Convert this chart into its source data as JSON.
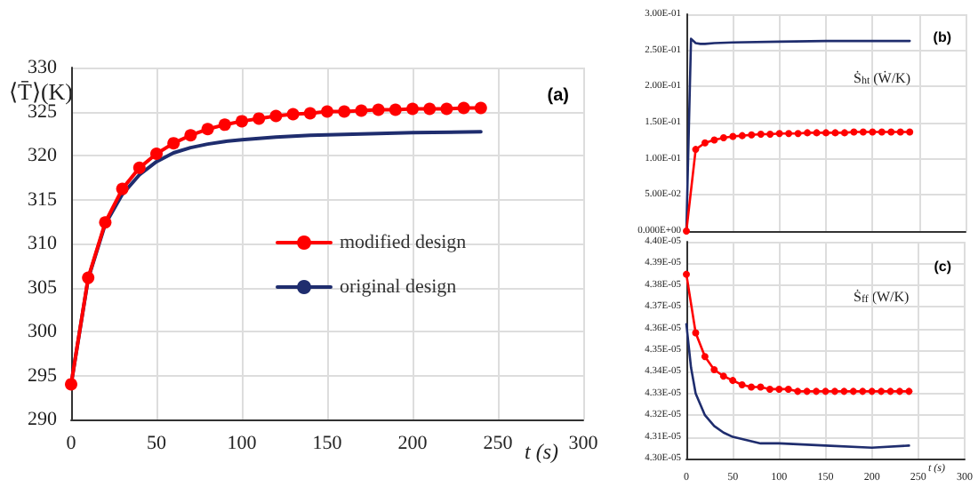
{
  "chart_data": [
    {
      "type": "line",
      "title": "(a)",
      "xlabel": "t (s)",
      "ylabel": "⟨T̄⟩(K)",
      "xlim": [
        0,
        300
      ],
      "xticks": [
        0,
        50,
        100,
        150,
        200,
        250,
        300
      ],
      "ylim": [
        290,
        330
      ],
      "yticks": [
        290,
        295,
        300,
        305,
        310,
        315,
        320,
        325,
        330
      ],
      "grid": true,
      "legend": "right",
      "series": [
        {
          "name": "modified design",
          "color": "#ff0000",
          "marker": "circle",
          "x": [
            0,
            10,
            20,
            30,
            40,
            50,
            60,
            70,
            80,
            90,
            100,
            110,
            120,
            130,
            140,
            150,
            160,
            170,
            180,
            190,
            200,
            210,
            220,
            230,
            240
          ],
          "values": [
            294,
            306.1,
            312.4,
            316.2,
            318.6,
            320.2,
            321.4,
            322.3,
            323.0,
            323.5,
            323.9,
            324.2,
            324.5,
            324.7,
            324.8,
            325.0,
            325.0,
            325.1,
            325.2,
            325.2,
            325.3,
            325.3,
            325.3,
            325.4,
            325.4
          ]
        },
        {
          "name": "original design",
          "color": "#1f2d6e",
          "marker": "none",
          "x": [
            0,
            10,
            20,
            30,
            40,
            50,
            60,
            70,
            80,
            90,
            100,
            120,
            140,
            160,
            200,
            240
          ],
          "values": [
            294,
            306.0,
            312.2,
            315.6,
            317.8,
            319.3,
            320.3,
            320.9,
            321.3,
            321.6,
            321.8,
            322.1,
            322.3,
            322.4,
            322.6,
            322.7
          ]
        }
      ]
    },
    {
      "type": "line",
      "title": "(b)",
      "ylabel": "Ṡ$_{ht}$ (Ẇ/K)",
      "xlim": [
        0,
        300
      ],
      "xticks": [
        0,
        50,
        100,
        150,
        200,
        250,
        300
      ],
      "ylim": [
        0,
        0.3
      ],
      "yticks": [
        {
          "value": 0,
          "label": "0.000E+00"
        },
        {
          "value": 0.05,
          "label": "5.00E-02"
        },
        {
          "value": 0.1,
          "label": "1.00E-01"
        },
        {
          "value": 0.15,
          "label": "1.50E-01"
        },
        {
          "value": 0.2,
          "label": "2.00E-01"
        },
        {
          "value": 0.25,
          "label": "2.50E-01"
        },
        {
          "value": 0.3,
          "label": "3.00E-01"
        }
      ],
      "grid": true,
      "tick_labels": "y",
      "series": [
        {
          "color": "#ff0000",
          "marker": "circle",
          "x": [
            0,
            10,
            20,
            30,
            40,
            50,
            60,
            70,
            80,
            90,
            100,
            110,
            120,
            130,
            140,
            150,
            160,
            170,
            180,
            190,
            200,
            210,
            220,
            230,
            240
          ],
          "values": [
            0,
            0.113,
            0.122,
            0.126,
            0.129,
            0.131,
            0.132,
            0.133,
            0.134,
            0.134,
            0.135,
            0.135,
            0.135,
            0.136,
            0.136,
            0.136,
            0.136,
            0.136,
            0.137,
            0.137,
            0.137,
            0.137,
            0.137,
            0.137,
            0.137
          ]
        },
        {
          "color": "#1f2d6e",
          "marker": "none",
          "x": [
            0,
            5,
            10,
            15,
            20,
            30,
            50,
            100,
            150,
            200,
            240
          ],
          "values": [
            0,
            0.266,
            0.26,
            0.259,
            0.259,
            0.26,
            0.261,
            0.262,
            0.263,
            0.263,
            0.263
          ]
        }
      ]
    },
    {
      "type": "line",
      "title": "(c)",
      "xlabel": "t (s)",
      "ylabel": "Ṡ$_{ff}$ (W/K)",
      "xlim": [
        0,
        300
      ],
      "xticks": [
        0,
        50,
        100,
        150,
        200,
        250,
        300
      ],
      "ylim": [
        4.3e-05,
        4.4e-05
      ],
      "yticks": [
        {
          "value": 4.3e-05,
          "label": "4.30E-05"
        },
        {
          "value": 4.31e-05,
          "label": "4.31E-05"
        },
        {
          "value": 4.32e-05,
          "label": "4.32E-05"
        },
        {
          "value": 4.33e-05,
          "label": "4.33E-05"
        },
        {
          "value": 4.34e-05,
          "label": "4.34E-05"
        },
        {
          "value": 4.35e-05,
          "label": "4.35E-05"
        },
        {
          "value": 4.36e-05,
          "label": "4.36E-05"
        },
        {
          "value": 4.37e-05,
          "label": "4.37E-05"
        },
        {
          "value": 4.38e-05,
          "label": "4.38E-05"
        },
        {
          "value": 4.39e-05,
          "label": "4.39E-05"
        },
        {
          "value": 4.4e-05,
          "label": "4.40E-05"
        }
      ],
      "grid": true,
      "series": [
        {
          "color": "#ff0000",
          "marker": "circle",
          "x": [
            0,
            10,
            20,
            30,
            40,
            50,
            60,
            70,
            80,
            90,
            100,
            110,
            120,
            130,
            140,
            150,
            160,
            170,
            180,
            190,
            200,
            210,
            220,
            230,
            240
          ],
          "values": [
            4.385e-05,
            4.358e-05,
            4.347e-05,
            4.341e-05,
            4.338e-05,
            4.336e-05,
            4.334e-05,
            4.333e-05,
            4.333e-05,
            4.332e-05,
            4.332e-05,
            4.332e-05,
            4.331e-05,
            4.331e-05,
            4.331e-05,
            4.331e-05,
            4.331e-05,
            4.331e-05,
            4.331e-05,
            4.331e-05,
            4.331e-05,
            4.331e-05,
            4.331e-05,
            4.331e-05,
            4.331e-05
          ]
        },
        {
          "color": "#1f2d6e",
          "marker": "none",
          "x": [
            0,
            5,
            10,
            20,
            30,
            40,
            50,
            60,
            80,
            100,
            150,
            200,
            240
          ],
          "values": [
            4.362e-05,
            4.342e-05,
            4.33e-05,
            4.32e-05,
            4.315e-05,
            4.312e-05,
            4.31e-05,
            4.309e-05,
            4.307e-05,
            4.307e-05,
            4.306e-05,
            4.305e-05,
            4.306e-05
          ]
        }
      ]
    }
  ]
}
